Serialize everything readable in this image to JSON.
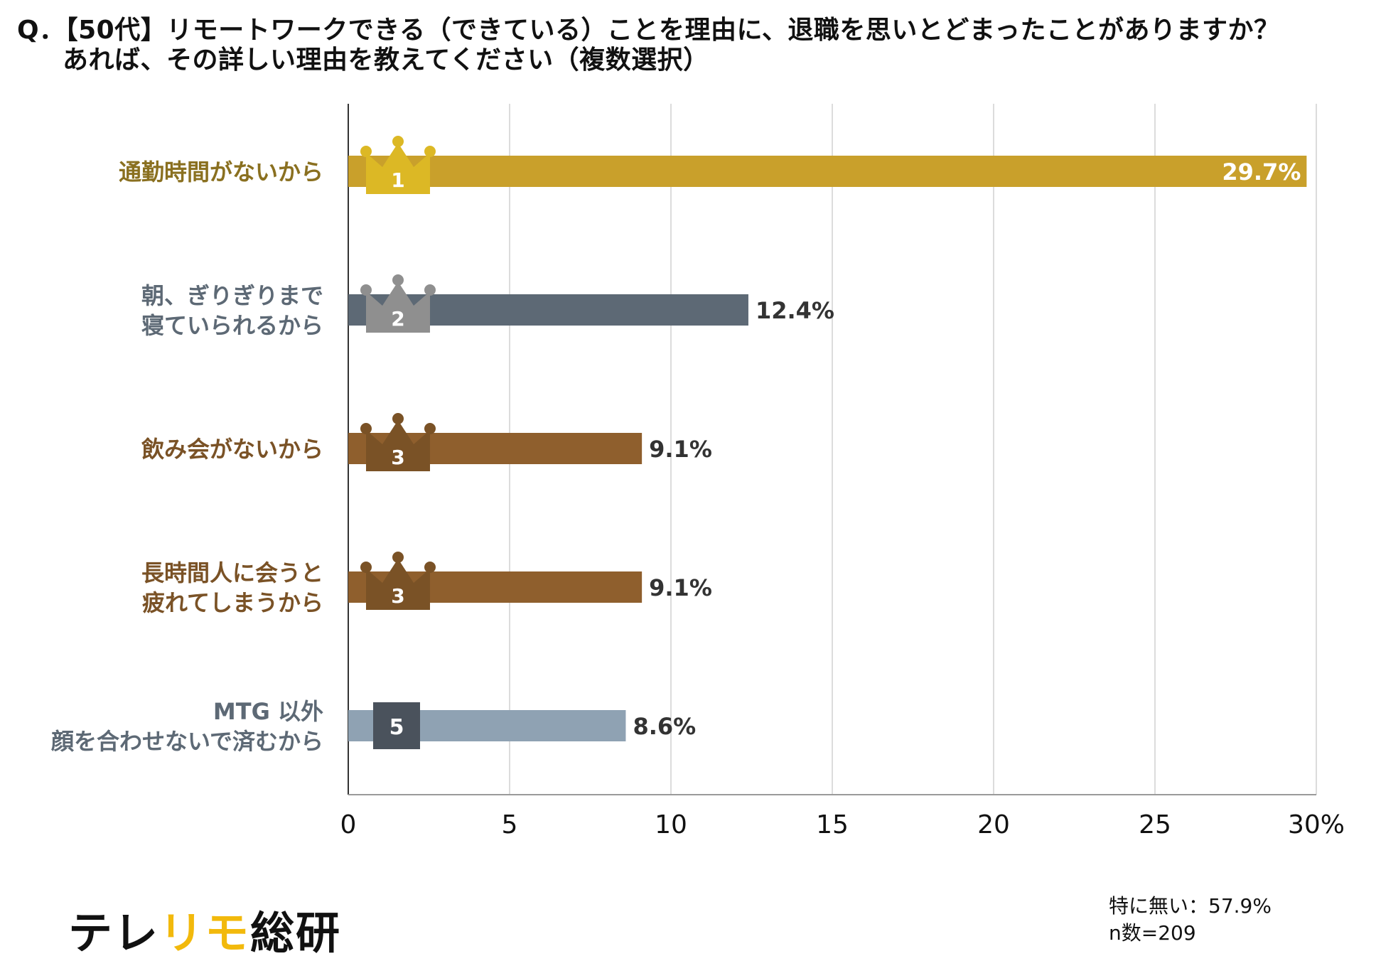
{
  "question": {
    "prefix": "Q．",
    "line1": "【50代】リモートワークできる（できている）ことを理由に、退職を思いとどまったことがありますか？",
    "line2": "あれば、その詳しい理由を教えてください（複数選択）"
  },
  "chart_data": {
    "type": "bar",
    "orientation": "horizontal",
    "categories": [
      [
        "通勤時間がないから"
      ],
      [
        "朝、ぎりぎりまで",
        "寝ていられるから"
      ],
      [
        "飲み会がないから"
      ],
      [
        "長時間人に会うと",
        "疲れてしまうから"
      ],
      [
        "MTG 以外",
        "顔を合わせないで済むから"
      ]
    ],
    "values": [
      29.7,
      12.4,
      9.1,
      9.1,
      8.6
    ],
    "value_labels": [
      "29.7%",
      "12.4%",
      "9.1%",
      "9.1%",
      "8.6%"
    ],
    "ranks": [
      "1",
      "2",
      "3",
      "3",
      "5"
    ],
    "rank_crown": [
      true,
      true,
      true,
      true,
      false
    ],
    "bar_colors": [
      "#c9a02b",
      "#5d6975",
      "#8f5f2d",
      "#8f5f2d",
      "#8fa2b3"
    ],
    "label_colors": [
      "#8a7020",
      "#5d6975",
      "#7a5226",
      "#7a5226",
      "#5d6975"
    ],
    "badge_colors": [
      "#dcb825",
      "#8f8f8f",
      "#7a5226",
      "#7a5226",
      "#4a525c"
    ],
    "xlim": [
      0,
      30
    ],
    "xticks": [
      0,
      5,
      10,
      15,
      20,
      25,
      30
    ],
    "xtick_labels": [
      "0",
      "5",
      "10",
      "15",
      "20",
      "25",
      "30%"
    ],
    "grid": true
  },
  "brand": {
    "text_start": "テレ",
    "text_accent": "リモ",
    "text_end": "総研",
    "accent_color": "#f2b90c"
  },
  "notes": {
    "none": "特に無い：57.9%",
    "sample": "n数=209"
  }
}
